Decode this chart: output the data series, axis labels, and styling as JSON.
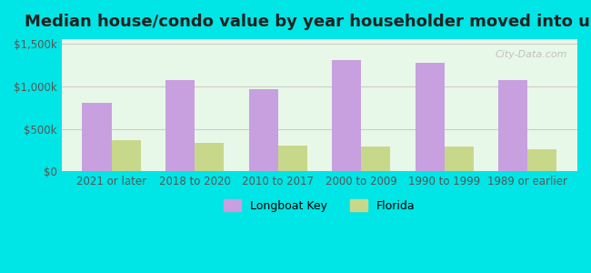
{
  "title": "Median house/condo value by year householder moved into unit",
  "categories": [
    "2021 or later",
    "2018 to 2020",
    "2010 to 2017",
    "2000 to 2009",
    "1990 to 1999",
    "1989 or earlier"
  ],
  "longboat_key_values": [
    800000,
    1075000,
    960000,
    1300000,
    1275000,
    1075000
  ],
  "florida_values": [
    370000,
    330000,
    305000,
    295000,
    295000,
    260000
  ],
  "longboat_key_color": "#c8a0e0",
  "florida_color": "#c8d88a",
  "background_outer": "#00e5e5",
  "background_inner_top": "#e8f8e8",
  "background_inner_bottom": "#ffffff",
  "title_fontsize": 13,
  "ylabel_ticks": [
    0,
    500000,
    1000000,
    1500000
  ],
  "ylabel_labels": [
    "$0",
    "$500k",
    "$1,000k",
    "$1,500k"
  ],
  "legend_longboat": "Longboat Key",
  "legend_florida": "Florida",
  "watermark": "City-Data.com"
}
